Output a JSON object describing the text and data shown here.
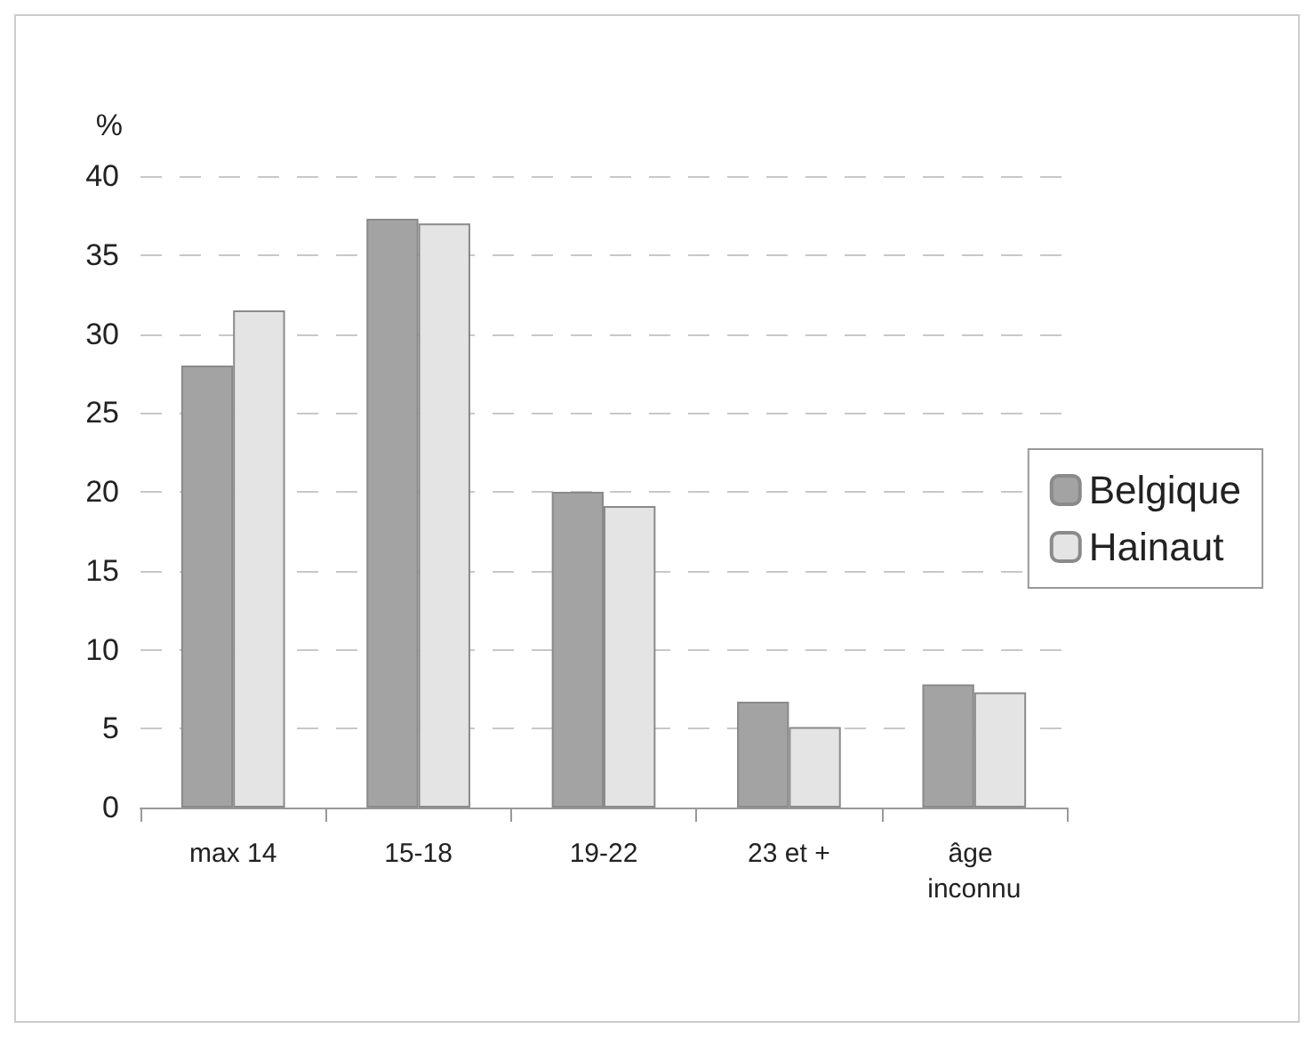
{
  "chart_data": {
    "type": "bar",
    "ylabel": "%",
    "categories": [
      "max 14",
      "15-18",
      "19-22",
      "23 et +",
      "âge inconnu"
    ],
    "series": [
      {
        "name": "Belgique",
        "color": "#a3a3a3",
        "values": [
          28,
          37.3,
          20,
          6.7,
          7.8
        ]
      },
      {
        "name": "Hainaut",
        "color": "#e4e4e4",
        "values": [
          31.5,
          37,
          19.1,
          5.1,
          7.3
        ]
      }
    ],
    "ylim": [
      0,
      40
    ],
    "yticks": [
      0,
      5,
      10,
      15,
      20,
      25,
      30,
      35,
      40
    ],
    "grid": "y",
    "legend": "right"
  }
}
